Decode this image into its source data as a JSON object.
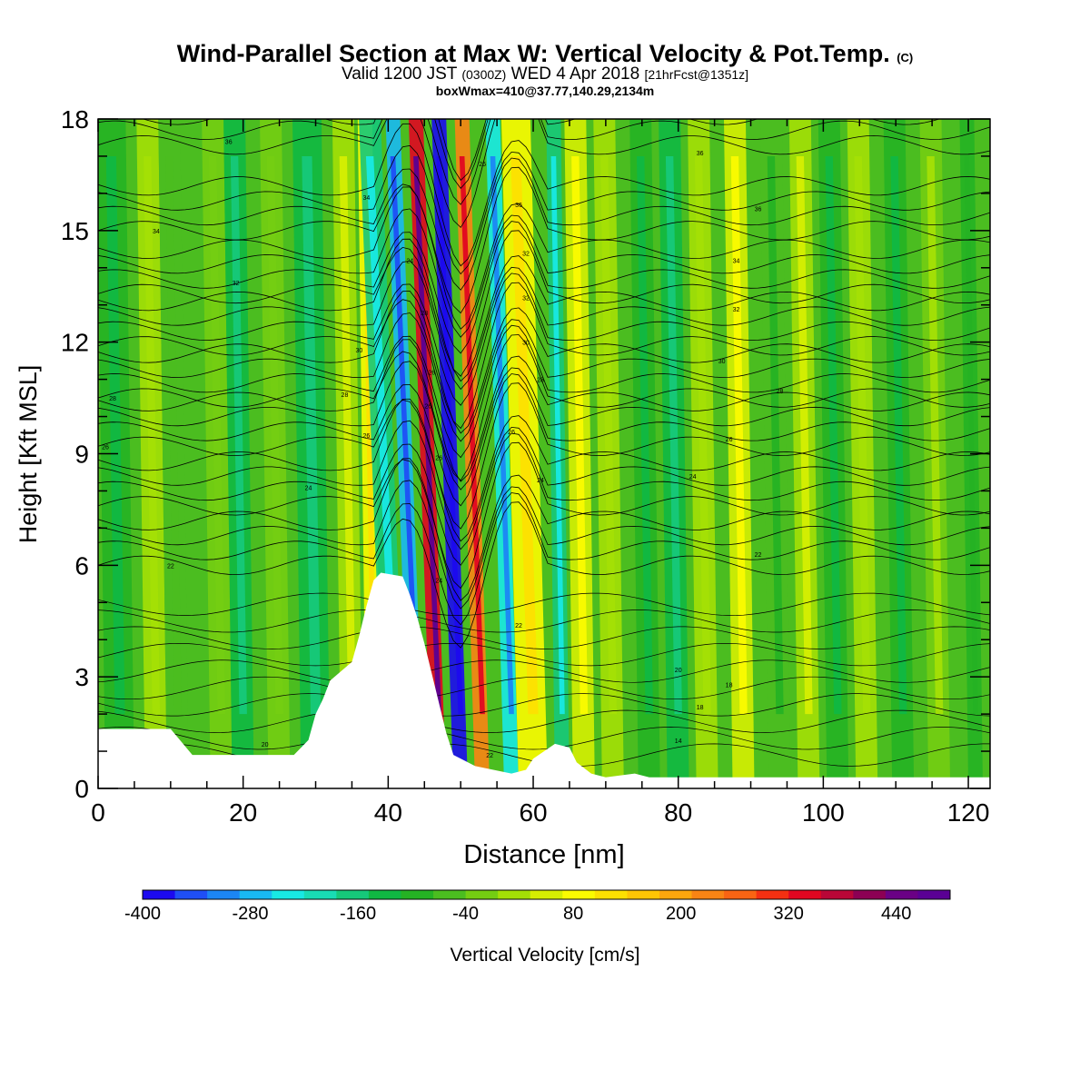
{
  "header": {
    "title_main": "Wind-Parallel Section at Max W: Vertical Velocity & Pot.Temp.",
    "title_mark": "(C)",
    "valid_prefix": "Valid 1200 JST",
    "valid_utc": "(0300Z)",
    "valid_date": "WED 4 Apr 2018",
    "fcst": "[21hrFcst@1351z]",
    "box_info": "boxWmax=410@37.77,140.29,2134m"
  },
  "chart_data": {
    "type": "heatmap",
    "xlabel": "Distance [nm]",
    "ylabel": "Height [Kft MSL]",
    "xlim": [
      0,
      123
    ],
    "ylim": [
      0,
      18
    ],
    "x_ticks": [
      0,
      20,
      40,
      60,
      80,
      100,
      120
    ],
    "y_ticks": [
      0,
      3,
      6,
      9,
      12,
      15,
      18
    ],
    "colorbar": {
      "label": "Vertical Velocity [cm/s]",
      "tick_values": [
        -400,
        -280,
        -160,
        -40,
        80,
        200,
        320,
        440
      ],
      "tick_labels": [
        "-400",
        "-280",
        "-160",
        "-40",
        "80",
        "200",
        "320",
        "440"
      ],
      "min": -400,
      "max": 500,
      "step": 40,
      "colors": [
        "#1c0aef",
        "#1f4ff5",
        "#1c86f4",
        "#19b9f2",
        "#18e9e4",
        "#19dcb4",
        "#16c87a",
        "#10b843",
        "#25b224",
        "#4bbd20",
        "#74cd12",
        "#a4df05",
        "#d5ee02",
        "#fbfb00",
        "#fde001",
        "#fec504",
        "#fda60d",
        "#f98414",
        "#f96413",
        "#f43012",
        "#e10621",
        "#b90637",
        "#8c0054",
        "#6a0185",
        "#5a0094"
      ],
      "min_label": "-400"
    },
    "terrain_kft": [
      [
        0,
        1.6
      ],
      [
        10,
        1.6
      ],
      [
        13,
        0.9
      ],
      [
        27,
        0.9
      ],
      [
        29,
        1.3
      ],
      [
        30,
        2.0
      ],
      [
        31,
        2.4
      ],
      [
        32,
        2.9
      ],
      [
        35,
        3.4
      ],
      [
        36,
        4.1
      ],
      [
        37,
        4.9
      ],
      [
        38,
        5.6
      ],
      [
        39,
        5.8
      ],
      [
        42,
        5.7
      ],
      [
        43,
        5.2
      ],
      [
        44,
        4.6
      ],
      [
        45,
        3.9
      ],
      [
        46,
        3.1
      ],
      [
        47,
        2.3
      ],
      [
        48,
        1.5
      ],
      [
        49,
        0.9
      ],
      [
        52,
        0.6
      ],
      [
        57,
        0.4
      ],
      [
        59,
        0.5
      ],
      [
        60,
        0.8
      ],
      [
        63,
        1.2
      ],
      [
        65,
        1.1
      ],
      [
        66,
        0.7
      ],
      [
        68,
        0.4
      ],
      [
        70,
        0.3
      ],
      [
        74,
        0.4
      ],
      [
        76,
        0.3
      ],
      [
        123,
        0.3
      ]
    ],
    "velocity_bands": [
      {
        "x": 3,
        "w": 4,
        "v": -60
      },
      {
        "x": 8,
        "w": 3,
        "v": 40
      },
      {
        "x": 11,
        "w": 3,
        "v": -20
      },
      {
        "x": 17,
        "w": 3,
        "v": 20
      },
      {
        "x": 20,
        "w": 3,
        "v": -90
      },
      {
        "x": 25,
        "w": 3,
        "v": 20
      },
      {
        "x": 30,
        "w": 4,
        "v": -100
      },
      {
        "x": 35,
        "w": 3,
        "v": 60
      },
      {
        "x": 38,
        "w": 2,
        "v": 120
      },
      {
        "x": 41,
        "w": 3,
        "v": -150
      },
      {
        "x": 44,
        "w": 2,
        "v": -250
      },
      {
        "x": 47,
        "w": 2,
        "v": 420
      },
      {
        "x": 50,
        "w": 2,
        "v": -380
      },
      {
        "x": 53,
        "w": 2,
        "v": 300
      },
      {
        "x": 57,
        "w": 2,
        "v": -220
      },
      {
        "x": 60,
        "w": 4,
        "v": 140
      },
      {
        "x": 64,
        "w": 2,
        "v": -150
      },
      {
        "x": 67,
        "w": 3,
        "v": 90
      },
      {
        "x": 71,
        "w": 3,
        "v": 40
      },
      {
        "x": 76,
        "w": 3,
        "v": -60
      },
      {
        "x": 80,
        "w": 3,
        "v": -110
      },
      {
        "x": 84,
        "w": 3,
        "v": 40
      },
      {
        "x": 89,
        "w": 3,
        "v": 100
      },
      {
        "x": 94,
        "w": 3,
        "v": -40
      },
      {
        "x": 98,
        "w": 3,
        "v": 60
      },
      {
        "x": 102,
        "w": 3,
        "v": -60
      },
      {
        "x": 106,
        "w": 3,
        "v": 40
      },
      {
        "x": 111,
        "w": 3,
        "v": -80
      },
      {
        "x": 116,
        "w": 3,
        "v": 30
      },
      {
        "x": 121,
        "w": 2,
        "v": -50
      }
    ],
    "isentropes": [
      {
        "label": "22",
        "y0": 6.0
      },
      {
        "label": "24",
        "y0": 7.6
      },
      {
        "label": "26",
        "y0": 9.2
      },
      {
        "label": "28",
        "y0": 10.5
      },
      {
        "label": "30",
        "y0": 11.9
      },
      {
        "label": "32",
        "y0": 13.3
      },
      {
        "label": "34",
        "y0": 15.0
      },
      {
        "label": "36",
        "y0": 17.3
      }
    ],
    "contour_labels": [
      {
        "text": "36",
        "x": 18,
        "y": 17.4
      },
      {
        "text": "34",
        "x": 8,
        "y": 15.0
      },
      {
        "text": "32",
        "x": 19,
        "y": 13.6
      },
      {
        "text": "28",
        "x": 2,
        "y": 10.5
      },
      {
        "text": "26",
        "x": 1,
        "y": 9.2
      },
      {
        "text": "22",
        "x": 10,
        "y": 6.0
      },
      {
        "text": "20",
        "x": 23,
        "y": 1.2
      },
      {
        "text": "30",
        "x": 36,
        "y": 11.8
      },
      {
        "text": "28",
        "x": 34,
        "y": 10.6
      },
      {
        "text": "24",
        "x": 29,
        "y": 8.1
      },
      {
        "text": "26",
        "x": 37,
        "y": 9.5
      },
      {
        "text": "34",
        "x": 37,
        "y": 15.9
      },
      {
        "text": "24",
        "x": 43,
        "y": 14.2
      },
      {
        "text": "28",
        "x": 45,
        "y": 12.8
      },
      {
        "text": "26",
        "x": 46,
        "y": 11.2
      },
      {
        "text": "26",
        "x": 45.5,
        "y": 10.3
      },
      {
        "text": "26",
        "x": 47,
        "y": 8.9
      },
      {
        "text": "24",
        "x": 47,
        "y": 5.6
      },
      {
        "text": "26",
        "x": 53,
        "y": 16.8
      },
      {
        "text": "36",
        "x": 58,
        "y": 15.7
      },
      {
        "text": "32",
        "x": 59,
        "y": 14.4
      },
      {
        "text": "32",
        "x": 59,
        "y": 13.2
      },
      {
        "text": "30",
        "x": 59,
        "y": 12.0
      },
      {
        "text": "28",
        "x": 61,
        "y": 11.0
      },
      {
        "text": "26",
        "x": 57,
        "y": 9.6
      },
      {
        "text": "24",
        "x": 61,
        "y": 8.3
      },
      {
        "text": "22",
        "x": 58,
        "y": 4.4
      },
      {
        "text": "22",
        "x": 54,
        "y": 0.9
      },
      {
        "text": "36",
        "x": 83,
        "y": 17.1
      },
      {
        "text": "36",
        "x": 91,
        "y": 15.6
      },
      {
        "text": "34",
        "x": 88,
        "y": 14.2
      },
      {
        "text": "32",
        "x": 88,
        "y": 12.9
      },
      {
        "text": "30",
        "x": 86,
        "y": 11.5
      },
      {
        "text": "28",
        "x": 94,
        "y": 10.7
      },
      {
        "text": "26",
        "x": 87,
        "y": 9.4
      },
      {
        "text": "24",
        "x": 82,
        "y": 8.4
      },
      {
        "text": "22",
        "x": 91,
        "y": 6.3
      },
      {
        "text": "20",
        "x": 80,
        "y": 3.2
      },
      {
        "text": "18",
        "x": 87,
        "y": 2.8
      },
      {
        "text": "18",
        "x": 83,
        "y": 2.2
      },
      {
        "text": "14",
        "x": 80,
        "y": 1.3
      }
    ]
  }
}
